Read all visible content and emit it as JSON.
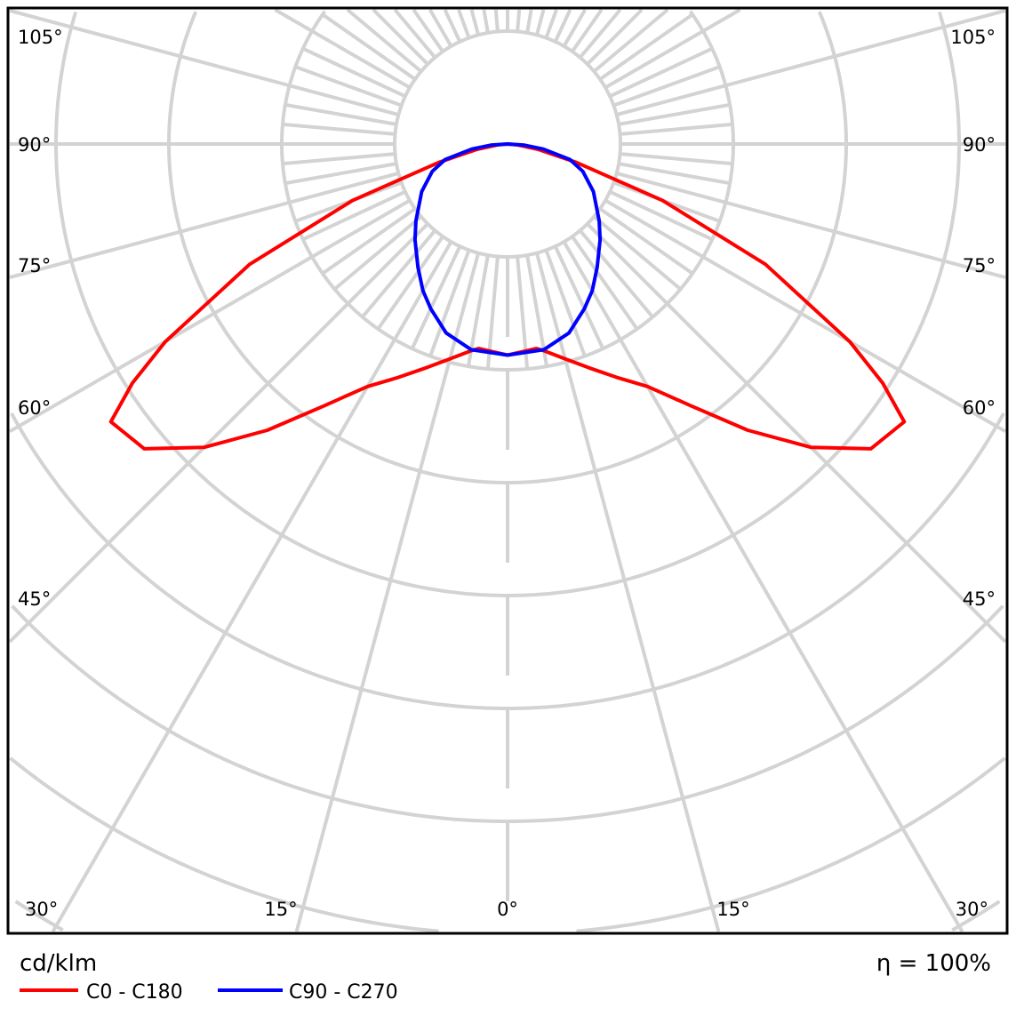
{
  "chart_data": {
    "type": "polar",
    "unit_label": "cd/klm",
    "efficiency_label": "η = 100%",
    "angle_labels": {
      "left": [
        "105°",
        "90°",
        "75°",
        "60°",
        "45°",
        "30°"
      ],
      "bottom": [
        "15°",
        "0°",
        "15°"
      ],
      "right": [
        "105°",
        "90°",
        "75°",
        "60°",
        "45°",
        "30°"
      ]
    },
    "grid": true,
    "radial_unit_note": "",
    "series": [
      {
        "name": "C0 - C180",
        "color": "#ff0000",
        "angles": [
          0,
          5,
          8,
          10,
          15,
          20,
          25,
          30,
          35,
          40,
          45,
          50,
          55,
          57.5,
          60,
          65,
          70,
          75,
          80,
          85,
          90
        ],
        "r_rings": [
          1.87,
          1.84,
          1.83,
          1.86,
          1.97,
          2.11,
          2.28,
          2.48,
          2.83,
          3.31,
          3.8,
          4.2,
          4.29,
          3.94,
          3.5,
          2.52,
          1.46,
          0.63,
          0.28,
          0.09,
          0
        ]
      },
      {
        "name": "C90 - C270",
        "color": "#0000ff",
        "angles": [
          0,
          10,
          18,
          25,
          30,
          36,
          44,
          50,
          61,
          70,
          76,
          82,
          86,
          90
        ],
        "r_rings": [
          1.87,
          1.85,
          1.76,
          1.61,
          1.5,
          1.35,
          1.18,
          1.06,
          0.87,
          0.71,
          0.57,
          0.32,
          0.15,
          0
        ]
      }
    ]
  }
}
